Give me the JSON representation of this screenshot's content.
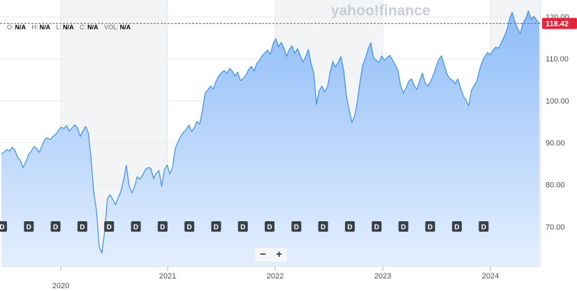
{
  "brand": {
    "logo_text": "yahoo!finance"
  },
  "ohlc": [
    {
      "key": "O:",
      "value": "N/A"
    },
    {
      "key": "H:",
      "value": "N/A"
    },
    {
      "key": "L:",
      "value": "N/A"
    },
    {
      "key": "C:",
      "value": "N/A"
    },
    {
      "key": "VOL:",
      "value": "N/A"
    }
  ],
  "zoom": {
    "minus_label": "−",
    "plus_label": "+"
  },
  "chart_data": {
    "type": "area",
    "title": "",
    "xlabel": "",
    "ylabel": "",
    "x_ticks": [
      "2020",
      "2021",
      "2022",
      "2023",
      "2024"
    ],
    "y_ticks": [
      "70.00",
      "80.00",
      "90.00",
      "100.00",
      "110.00",
      "120.00"
    ],
    "ylim": [
      60.5,
      124
    ],
    "current_price": "118.42",
    "dividend_marker_label": "D",
    "dividend_markers": 19,
    "line_color": "#3a8ef0",
    "grid": true,
    "series": [
      {
        "values": [
          87.3,
          87.8,
          88.4,
          88.0,
          88.9,
          88.2,
          86.5,
          85.8,
          84.1,
          85.5,
          87.2,
          88.0,
          89.1,
          88.6,
          87.7,
          89.4,
          90.8,
          91.2,
          90.7,
          91.5,
          92.0,
          92.9,
          93.7,
          93.4,
          94.1,
          92.8,
          93.5,
          94.3,
          93.6,
          91.5,
          92.8,
          93.9,
          92.3,
          86.4,
          78.3,
          73.9,
          65.2,
          63.7,
          68.9,
          76.7,
          77.6,
          76.5,
          75.2,
          76.9,
          78.4,
          81.2,
          84.6,
          79.8,
          78.0,
          79.6,
          81.9,
          81.3,
          82.3,
          83.6,
          84.1,
          83.9,
          81.5,
          82.7,
          83.4,
          79.6,
          83.5,
          84.7,
          82.6,
          84.1,
          88.7,
          90.1,
          91.6,
          92.5,
          93.1,
          94.2,
          92.7,
          93.6,
          95.1,
          94.5,
          97.8,
          101.8,
          102.6,
          103.5,
          102.8,
          104.6,
          105.9,
          106.7,
          107.2,
          106.5,
          107.7,
          107.1,
          105.9,
          106.8,
          104.8,
          105.3,
          106.1,
          107.4,
          108.2,
          107.1,
          108.9,
          109.6,
          110.8,
          111.4,
          112.1,
          111.0,
          113.5,
          114.8,
          112.9,
          113.9,
          112.6,
          110.6,
          112.2,
          113.1,
          111.3,
          112.4,
          110.8,
          109.2,
          110.5,
          112.2,
          108.9,
          106.5,
          99.1,
          102.4,
          103.5,
          102.1,
          103.2,
          106.8,
          109.4,
          108.0,
          109.2,
          110.5,
          107.2,
          101.1,
          97.8,
          94.9,
          96.3,
          99.6,
          104.5,
          108.5,
          110.1,
          112.4,
          113.8,
          110.2,
          109.6,
          109.1,
          110.7,
          109.6,
          110.3,
          110.8,
          109.7,
          108.5,
          107.2,
          103.4,
          101.8,
          103.1,
          104.7,
          105.2,
          103.6,
          102.7,
          104.9,
          106.6,
          104.2,
          103.5,
          104.6,
          106.1,
          108.1,
          109.8,
          110.7,
          108.6,
          106.4,
          105.3,
          104.9,
          104.1,
          105.2,
          103.1,
          101.2,
          100.2,
          98.8,
          102.4,
          103.6,
          104.7,
          107.3,
          109.3,
          110.6,
          111.5,
          110.9,
          112.1,
          112.8,
          112.5,
          113.8,
          115.2,
          116.7,
          119.3,
          121.1,
          118.9,
          117.2,
          116.0,
          118.5,
          119.6,
          121.4,
          119.4,
          120.1,
          119.2,
          118.42
        ]
      }
    ]
  }
}
